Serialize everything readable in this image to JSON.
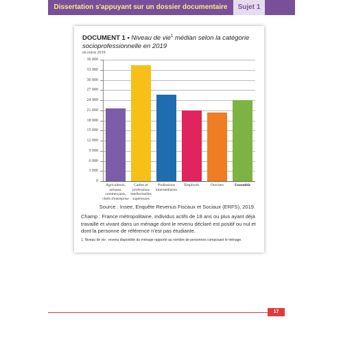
{
  "header": {
    "title": "Dissertation s'appuyant sur un dossier documentaire",
    "tag": "Sujet 1"
  },
  "document": {
    "label": "DOCUMENT 1 •",
    "title": "Niveau de vie",
    "title_note": "1",
    "title_rest": "médian selon la catégorie socioprofessionnelle en 2019"
  },
  "chart_data": {
    "type": "bar",
    "unit": "en euros 2019",
    "categories": [
      "Agriculteurs, artisans, commerçants, chefs d'entreprise",
      "Cadres et professions intellectuelles supérieures",
      "Professions intermédiaires",
      "Employés",
      "Ouvriers",
      "Ensemble"
    ],
    "values": [
      21600,
      34300,
      25600,
      21000,
      20300,
      23900
    ],
    "colors": [
      "#7b5ea7",
      "#f6c018",
      "#1f6cb0",
      "#e0245e",
      "#ef7d23",
      "#7cb342"
    ],
    "ylim": [
      0,
      36000
    ],
    "yticks": [
      0,
      {
        "value": 3000,
        "label": "3 000"
      },
      {
        "value": 6000,
        "label": "6 000"
      },
      {
        "value": 9000,
        "label": "9 000"
      },
      {
        "value": 12000,
        "label": "12 000"
      },
      {
        "value": 15000,
        "label": "15 000"
      },
      {
        "value": 18000,
        "label": "18 000"
      },
      {
        "value": 21000,
        "label": "21 000"
      },
      {
        "value": 24000,
        "label": "24 000"
      },
      {
        "value": 27000,
        "label": "27 000"
      },
      {
        "value": 30000,
        "label": "30 000"
      },
      {
        "value": 33000,
        "label": "33 000"
      },
      {
        "value": 36000,
        "label": "36 000"
      }
    ],
    "grid": true
  },
  "source": "Source : Insee, Enquête Revenus Fiscaux et Sociaux (ERFS), 2019.",
  "champ": "Champ : France métropolitaine, individus actifs de 18 ans ou plus ayant déjà travaillé et vivant dans un ménage dont le revenu déclaré est positif ou nul et dont la personne de référence n'est pas étudiante.",
  "footnote": "1. Niveau de vie : revenu disponible du ménage rapporté au nombre de personnes composant le ménage.",
  "page_number": "17"
}
